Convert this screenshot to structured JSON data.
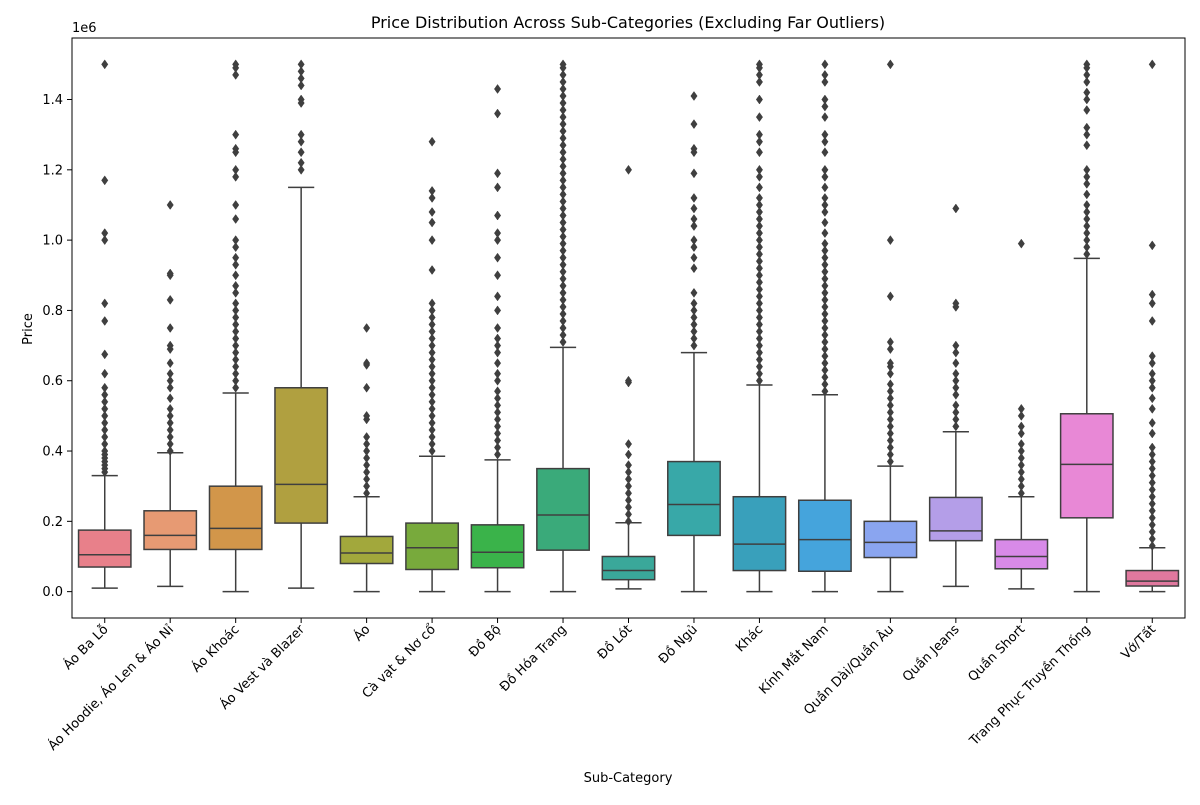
{
  "chart_data": {
    "type": "box",
    "title": "Price Distribution Across Sub-Categories (Excluding Far Outliers)",
    "xlabel": "Sub-Category",
    "ylabel": "Price",
    "y_offset_label": "1e6",
    "y_scale": 1000000,
    "ylim": [
      -0.075,
      1.575
    ],
    "yticks": [
      0.0,
      0.2,
      0.4,
      0.6,
      0.8,
      1.0,
      1.2,
      1.4
    ],
    "ytick_labels": [
      "0.0",
      "0.2",
      "0.4",
      "0.6",
      "0.8",
      "1.0",
      "1.2",
      "1.4"
    ],
    "grid": false,
    "series": [
      {
        "category": "Áo Ba Lỗ",
        "color": "#e8808a",
        "whislo": 0.01,
        "q1": 0.07,
        "med": 0.105,
        "q3": 0.175,
        "whishi": 0.33,
        "outliers": [
          0.34,
          0.35,
          0.36,
          0.37,
          0.38,
          0.39,
          0.4,
          0.42,
          0.44,
          0.46,
          0.48,
          0.5,
          0.52,
          0.54,
          0.56,
          0.58,
          0.62,
          0.675,
          0.77,
          0.82,
          1.0,
          1.02,
          1.17,
          1.5
        ]
      },
      {
        "category": "Áo Hoodie, Áo Len & Áo Nỉ",
        "color": "#e79a73",
        "whislo": 0.015,
        "q1": 0.12,
        "med": 0.16,
        "q3": 0.23,
        "whishi": 0.395,
        "outliers": [
          0.4,
          0.42,
          0.44,
          0.46,
          0.48,
          0.5,
          0.52,
          0.55,
          0.58,
          0.6,
          0.62,
          0.65,
          0.69,
          0.7,
          0.75,
          0.83,
          0.9,
          0.905,
          1.1
        ]
      },
      {
        "category": "Áo Khoác",
        "color": "#d2964a",
        "whislo": 0.0,
        "q1": 0.12,
        "med": 0.18,
        "q3": 0.3,
        "whishi": 0.565,
        "outliers": [
          0.58,
          0.6,
          0.62,
          0.64,
          0.66,
          0.68,
          0.7,
          0.72,
          0.74,
          0.76,
          0.78,
          0.8,
          0.82,
          0.85,
          0.87,
          0.9,
          0.93,
          0.95,
          0.98,
          1.0,
          1.06,
          1.1,
          1.18,
          1.2,
          1.25,
          1.26,
          1.3,
          1.47,
          1.49,
          1.5
        ]
      },
      {
        "category": "Áo Vest và Blazer",
        "color": "#b0a040",
        "whislo": 0.01,
        "q1": 0.195,
        "med": 0.305,
        "q3": 0.58,
        "whishi": 1.15,
        "outliers": [
          1.2,
          1.22,
          1.25,
          1.28,
          1.3,
          1.39,
          1.4,
          1.44,
          1.46,
          1.48,
          1.5
        ]
      },
      {
        "category": "Áo",
        "color": "#a2a83c",
        "whislo": 0.0,
        "q1": 0.08,
        "med": 0.11,
        "q3": 0.157,
        "whishi": 0.27,
        "outliers": [
          0.28,
          0.3,
          0.32,
          0.34,
          0.36,
          0.38,
          0.4,
          0.42,
          0.44,
          0.49,
          0.5,
          0.58,
          0.645,
          0.65,
          0.75
        ]
      },
      {
        "category": "Cà vạt & Nơ cổ",
        "color": "#78aa3c",
        "whislo": 0.0,
        "q1": 0.063,
        "med": 0.125,
        "q3": 0.195,
        "whishi": 0.385,
        "outliers": [
          0.4,
          0.42,
          0.44,
          0.46,
          0.48,
          0.5,
          0.52,
          0.54,
          0.56,
          0.58,
          0.6,
          0.62,
          0.64,
          0.66,
          0.68,
          0.7,
          0.72,
          0.74,
          0.76,
          0.78,
          0.8,
          0.82,
          0.915,
          1.0,
          1.05,
          1.08,
          1.12,
          1.14,
          1.28
        ]
      },
      {
        "category": "Đồ Bộ",
        "color": "#3ab34a",
        "whislo": 0.0,
        "q1": 0.068,
        "med": 0.112,
        "q3": 0.19,
        "whishi": 0.375,
        "outliers": [
          0.39,
          0.41,
          0.43,
          0.45,
          0.47,
          0.49,
          0.51,
          0.53,
          0.55,
          0.57,
          0.6,
          0.62,
          0.65,
          0.68,
          0.7,
          0.72,
          0.75,
          0.8,
          0.84,
          0.9,
          0.95,
          1.0,
          1.02,
          1.07,
          1.15,
          1.19,
          1.36,
          1.43
        ]
      },
      {
        "category": "Đồ Hóa Trang",
        "color": "#3aaa7a",
        "whislo": 0.0,
        "q1": 0.118,
        "med": 0.218,
        "q3": 0.35,
        "whishi": 0.695,
        "outliers": [
          0.71,
          0.73,
          0.75,
          0.77,
          0.79,
          0.81,
          0.83,
          0.85,
          0.87,
          0.89,
          0.91,
          0.93,
          0.95,
          0.97,
          0.99,
          1.01,
          1.03,
          1.05,
          1.07,
          1.09,
          1.11,
          1.13,
          1.15,
          1.17,
          1.19,
          1.21,
          1.23,
          1.25,
          1.27,
          1.29,
          1.31,
          1.33,
          1.35,
          1.37,
          1.39,
          1.41,
          1.43,
          1.45,
          1.47,
          1.49,
          1.5
        ]
      },
      {
        "category": "Đồ Lót",
        "color": "#3aa89a",
        "whislo": 0.008,
        "q1": 0.034,
        "med": 0.06,
        "q3": 0.1,
        "whishi": 0.196,
        "outliers": [
          0.2,
          0.22,
          0.24,
          0.26,
          0.28,
          0.3,
          0.32,
          0.34,
          0.36,
          0.39,
          0.42,
          0.595,
          0.6,
          1.2
        ]
      },
      {
        "category": "Đồ Ngủ",
        "color": "#38a8a8",
        "whislo": 0.0,
        "q1": 0.16,
        "med": 0.248,
        "q3": 0.37,
        "whishi": 0.68,
        "outliers": [
          0.7,
          0.72,
          0.74,
          0.76,
          0.78,
          0.8,
          0.82,
          0.85,
          0.92,
          0.95,
          0.98,
          1.0,
          1.04,
          1.06,
          1.09,
          1.12,
          1.19,
          1.25,
          1.26,
          1.33,
          1.41
        ]
      },
      {
        "category": "Khác",
        "color": "#39a0bb",
        "whislo": 0.0,
        "q1": 0.06,
        "med": 0.135,
        "q3": 0.27,
        "whishi": 0.588,
        "outliers": [
          0.6,
          0.62,
          0.64,
          0.66,
          0.68,
          0.7,
          0.72,
          0.74,
          0.76,
          0.78,
          0.8,
          0.82,
          0.84,
          0.86,
          0.88,
          0.9,
          0.92,
          0.94,
          0.96,
          0.98,
          1.0,
          1.02,
          1.04,
          1.06,
          1.08,
          1.1,
          1.12,
          1.15,
          1.18,
          1.2,
          1.25,
          1.28,
          1.3,
          1.35,
          1.4,
          1.45,
          1.47,
          1.49,
          1.5
        ]
      },
      {
        "category": "Kính Mắt Nam",
        "color": "#45a4dc",
        "whislo": 0.0,
        "q1": 0.058,
        "med": 0.148,
        "q3": 0.26,
        "whishi": 0.56,
        "outliers": [
          0.57,
          0.59,
          0.61,
          0.63,
          0.65,
          0.67,
          0.69,
          0.71,
          0.73,
          0.75,
          0.77,
          0.79,
          0.81,
          0.83,
          0.85,
          0.87,
          0.89,
          0.91,
          0.93,
          0.95,
          0.97,
          0.99,
          1.02,
          1.05,
          1.08,
          1.1,
          1.12,
          1.15,
          1.18,
          1.2,
          1.25,
          1.28,
          1.3,
          1.35,
          1.38,
          1.4,
          1.45,
          1.47,
          1.5
        ]
      },
      {
        "category": "Quần Dài/Quần Âu",
        "color": "#8aa5f0",
        "whislo": 0.0,
        "q1": 0.097,
        "med": 0.14,
        "q3": 0.2,
        "whishi": 0.357,
        "outliers": [
          0.37,
          0.39,
          0.41,
          0.43,
          0.45,
          0.47,
          0.49,
          0.51,
          0.53,
          0.55,
          0.57,
          0.59,
          0.62,
          0.64,
          0.65,
          0.69,
          0.71,
          0.84,
          1.0,
          1.5
        ]
      },
      {
        "category": "Quần Jeans",
        "color": "#b49ee8",
        "whislo": 0.015,
        "q1": 0.145,
        "med": 0.173,
        "q3": 0.268,
        "whishi": 0.455,
        "outliers": [
          0.47,
          0.49,
          0.51,
          0.53,
          0.56,
          0.58,
          0.6,
          0.62,
          0.65,
          0.68,
          0.7,
          0.81,
          0.82,
          1.09
        ]
      },
      {
        "category": "Quần Short",
        "color": "#d88ae8",
        "whislo": 0.008,
        "q1": 0.065,
        "med": 0.1,
        "q3": 0.148,
        "whishi": 0.27,
        "outliers": [
          0.28,
          0.3,
          0.32,
          0.34,
          0.36,
          0.38,
          0.4,
          0.42,
          0.45,
          0.47,
          0.5,
          0.52,
          0.99
        ]
      },
      {
        "category": "Trang Phục Truyền Thống",
        "color": "#e888d6",
        "whislo": 0.0,
        "q1": 0.21,
        "med": 0.362,
        "q3": 0.506,
        "whishi": 0.948,
        "outliers": [
          0.96,
          0.98,
          1.0,
          1.02,
          1.04,
          1.06,
          1.08,
          1.1,
          1.13,
          1.16,
          1.18,
          1.2,
          1.27,
          1.3,
          1.32,
          1.37,
          1.4,
          1.42,
          1.45,
          1.47,
          1.49,
          1.5
        ]
      },
      {
        "category": "Vớ/Tất",
        "color": "#e0789e",
        "whislo": 0.0,
        "q1": 0.016,
        "med": 0.03,
        "q3": 0.06,
        "whishi": 0.125,
        "outliers": [
          0.13,
          0.15,
          0.17,
          0.19,
          0.21,
          0.23,
          0.25,
          0.27,
          0.29,
          0.31,
          0.33,
          0.35,
          0.37,
          0.39,
          0.41,
          0.45,
          0.48,
          0.52,
          0.55,
          0.58,
          0.6,
          0.62,
          0.65,
          0.67,
          0.77,
          0.82,
          0.845,
          0.985,
          1.5
        ]
      }
    ]
  }
}
